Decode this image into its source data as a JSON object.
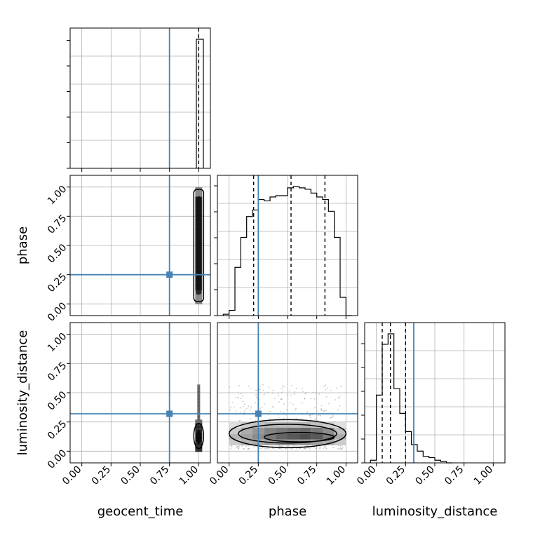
{
  "chart_data": {
    "type": "corner",
    "parameters": [
      "geocent_time",
      "phase",
      "luminosity_distance"
    ],
    "axis_labels": {
      "geocent_time": "geocent_time",
      "phase": "phase",
      "luminosity_distance": "luminosity_distance"
    },
    "truths": {
      "geocent_time": 0.75,
      "phase": 0.25,
      "luminosity_distance": 0.32
    },
    "quantiles": {
      "geocent_time": [
        0.985,
        1.0,
        1.01
      ],
      "phase": [
        0.21,
        0.53,
        0.82
      ],
      "luminosity_distance": [
        0.05,
        0.12,
        0.25
      ]
    },
    "axis_range": [
      -0.1,
      1.1
    ],
    "ticks": [
      0.0,
      0.25,
      0.5,
      0.75,
      1.0
    ],
    "tick_labels": [
      "0.00",
      "0.25",
      "0.50",
      "0.75",
      "1.00"
    ],
    "colors": {
      "truth": "#4682b4",
      "hist": "#000000",
      "grid": "#b0b0b0"
    },
    "grid": true,
    "hist_1d": {
      "phase": {
        "edges": [
          -0.05,
          0.0,
          0.05,
          0.1,
          0.15,
          0.2,
          0.25,
          0.3,
          0.35,
          0.4,
          0.45,
          0.5,
          0.55,
          0.6,
          0.65,
          0.7,
          0.75,
          0.8,
          0.85,
          0.9,
          0.95,
          1.0,
          1.05
        ],
        "values": [
          0.01,
          0.04,
          0.37,
          0.6,
          0.76,
          0.81,
          0.89,
          0.88,
          0.91,
          0.92,
          0.92,
          0.98,
          0.99,
          0.98,
          0.97,
          0.94,
          0.91,
          0.89,
          0.8,
          0.6,
          0.14,
          0.0
        ]
      },
      "luminosity_distance": {
        "edges": [
          -0.05,
          0.0,
          0.05,
          0.1,
          0.15,
          0.2,
          0.25,
          0.3,
          0.35,
          0.4,
          0.45,
          0.5,
          0.55,
          0.6,
          0.65
        ],
        "values": [
          0.02,
          0.52,
          0.91,
          0.99,
          0.57,
          0.38,
          0.24,
          0.14,
          0.09,
          0.05,
          0.04,
          0.02,
          0.01,
          0.0
        ]
      },
      "geocent_time": {
        "edges": [
          0.98,
          1.0,
          1.04
        ],
        "values": [
          0.9,
          0.9
        ]
      }
    },
    "hist_2d_phase_luminosity": {
      "phase_bins": [
        0.0,
        0.1,
        0.2,
        0.3,
        0.4,
        0.5,
        0.6,
        0.7,
        0.8,
        0.9
      ],
      "luminosity_bins": [
        0.05,
        0.1,
        0.15,
        0.2
      ],
      "density": [
        [
          0.25,
          0.35,
          0.4,
          0.45,
          0.5,
          0.5,
          0.5,
          0.45,
          0.4,
          0.25
        ],
        [
          0.35,
          0.45,
          0.55,
          0.65,
          0.75,
          0.8,
          0.85,
          0.8,
          0.65,
          0.4
        ],
        [
          0.25,
          0.4,
          0.5,
          0.6,
          0.65,
          0.7,
          0.72,
          0.65,
          0.55,
          0.3
        ],
        [
          0.15,
          0.25,
          0.3,
          0.35,
          0.35,
          0.35,
          0.35,
          0.3,
          0.25,
          0.15
        ]
      ]
    }
  }
}
